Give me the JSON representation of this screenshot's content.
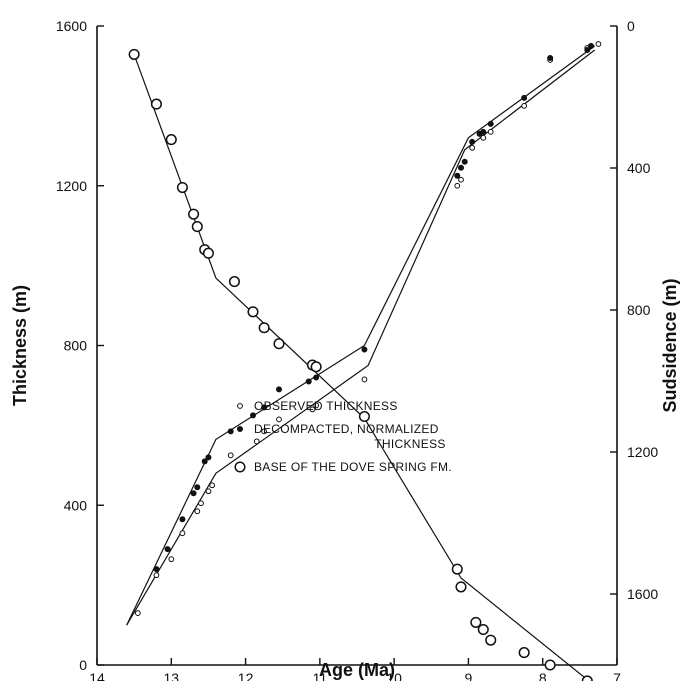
{
  "chart_data": {
    "type": "scatter",
    "x_axis": {
      "label": "Age (Ma)",
      "range": [
        14,
        7
      ],
      "reversed": true,
      "ticks": [
        14,
        13,
        12,
        11,
        10,
        9,
        8,
        7
      ]
    },
    "y_axis_left": {
      "label": "Thickness (m)",
      "range": [
        0,
        1600
      ],
      "ticks": [
        0,
        400,
        800,
        1200,
        1600
      ]
    },
    "y_axis_right": {
      "label": "Sudsidence (m)",
      "range": [
        0,
        1800
      ],
      "inverted": true,
      "ticks": [
        0,
        400,
        800,
        1200,
        1600
      ]
    },
    "grid": false,
    "legend": {
      "placement": "bottom-center",
      "entries": [
        {
          "marker": "small-open-circle",
          "label_lines": [
            "OBSERVED THICKNESS"
          ]
        },
        {
          "marker": "small-filled-circle",
          "label_lines": [
            "DECOMPACTED, NORMALIZED",
            "THICKNESS"
          ]
        },
        {
          "marker": "large-open-circle",
          "label_lines": [
            "BASE OF THE DOVE SPRING FM."
          ]
        }
      ]
    },
    "series": [
      {
        "axis": "left",
        "marker": "small-open-circle",
        "points": [
          [
            13.45,
            130
          ],
          [
            13.2,
            225
          ],
          [
            13.0,
            265
          ],
          [
            12.85,
            330
          ],
          [
            12.65,
            385
          ],
          [
            12.6,
            405
          ],
          [
            12.5,
            435
          ],
          [
            12.45,
            450
          ],
          [
            12.2,
            525
          ],
          [
            11.85,
            560
          ],
          [
            11.75,
            585
          ],
          [
            11.55,
            615
          ],
          [
            11.1,
            640
          ],
          [
            11.05,
            650
          ],
          [
            10.4,
            715
          ],
          [
            9.15,
            1200
          ],
          [
            9.1,
            1215
          ],
          [
            8.95,
            1295
          ],
          [
            8.8,
            1320
          ],
          [
            8.7,
            1335
          ],
          [
            8.25,
            1400
          ],
          [
            7.9,
            1515
          ],
          [
            7.4,
            1545
          ],
          [
            7.35,
            1550
          ],
          [
            7.25,
            1555
          ]
        ]
      },
      {
        "axis": "left",
        "marker": "small-filled-circle",
        "points": [
          [
            13.2,
            240
          ],
          [
            13.05,
            290
          ],
          [
            12.85,
            365
          ],
          [
            12.7,
            430
          ],
          [
            12.65,
            445
          ],
          [
            12.55,
            510
          ],
          [
            12.5,
            520
          ],
          [
            12.2,
            585
          ],
          [
            11.9,
            625
          ],
          [
            11.75,
            645
          ],
          [
            11.55,
            690
          ],
          [
            11.15,
            710
          ],
          [
            11.05,
            720
          ],
          [
            10.4,
            790
          ],
          [
            9.15,
            1225
          ],
          [
            9.1,
            1245
          ],
          [
            9.05,
            1260
          ],
          [
            8.95,
            1310
          ],
          [
            8.85,
            1330
          ],
          [
            8.8,
            1335
          ],
          [
            8.7,
            1355
          ],
          [
            8.25,
            1420
          ],
          [
            7.9,
            1520
          ],
          [
            7.4,
            1540
          ],
          [
            7.35,
            1550
          ]
        ]
      },
      {
        "axis": "right",
        "marker": "large-open-circle",
        "points": [
          [
            13.5,
            80
          ],
          [
            13.2,
            220
          ],
          [
            13.0,
            320
          ],
          [
            12.85,
            455
          ],
          [
            12.7,
            530
          ],
          [
            12.65,
            565
          ],
          [
            12.55,
            630
          ],
          [
            12.5,
            640
          ],
          [
            12.15,
            720
          ],
          [
            11.9,
            805
          ],
          [
            11.75,
            850
          ],
          [
            11.55,
            895
          ],
          [
            11.1,
            955
          ],
          [
            11.05,
            960
          ],
          [
            10.4,
            1100
          ],
          [
            9.15,
            1530
          ],
          [
            9.1,
            1580
          ],
          [
            8.9,
            1680
          ],
          [
            8.8,
            1700
          ],
          [
            8.7,
            1730
          ],
          [
            8.25,
            1765
          ],
          [
            7.9,
            1800
          ],
          [
            7.4,
            1845
          ],
          [
            7.35,
            1860
          ],
          [
            7.25,
            1870
          ]
        ]
      }
    ],
    "trend_lines": [
      {
        "name": "observed-thickness-trend",
        "axis": "left",
        "points": [
          [
            13.6,
            100
          ],
          [
            12.4,
            480
          ],
          [
            10.35,
            750
          ],
          [
            9.05,
            1290
          ],
          [
            7.3,
            1540
          ]
        ]
      },
      {
        "name": "decompacted-thickness-trend",
        "axis": "left",
        "points": [
          [
            13.6,
            100
          ],
          [
            12.4,
            565
          ],
          [
            10.4,
            800
          ],
          [
            9.0,
            1320
          ],
          [
            7.3,
            1550
          ]
        ]
      },
      {
        "name": "subsidence-trend",
        "axis": "right",
        "points": [
          [
            13.5,
            80
          ],
          [
            12.4,
            710
          ],
          [
            10.4,
            1105
          ],
          [
            9.1,
            1555
          ],
          [
            7.2,
            1875
          ]
        ]
      }
    ]
  }
}
